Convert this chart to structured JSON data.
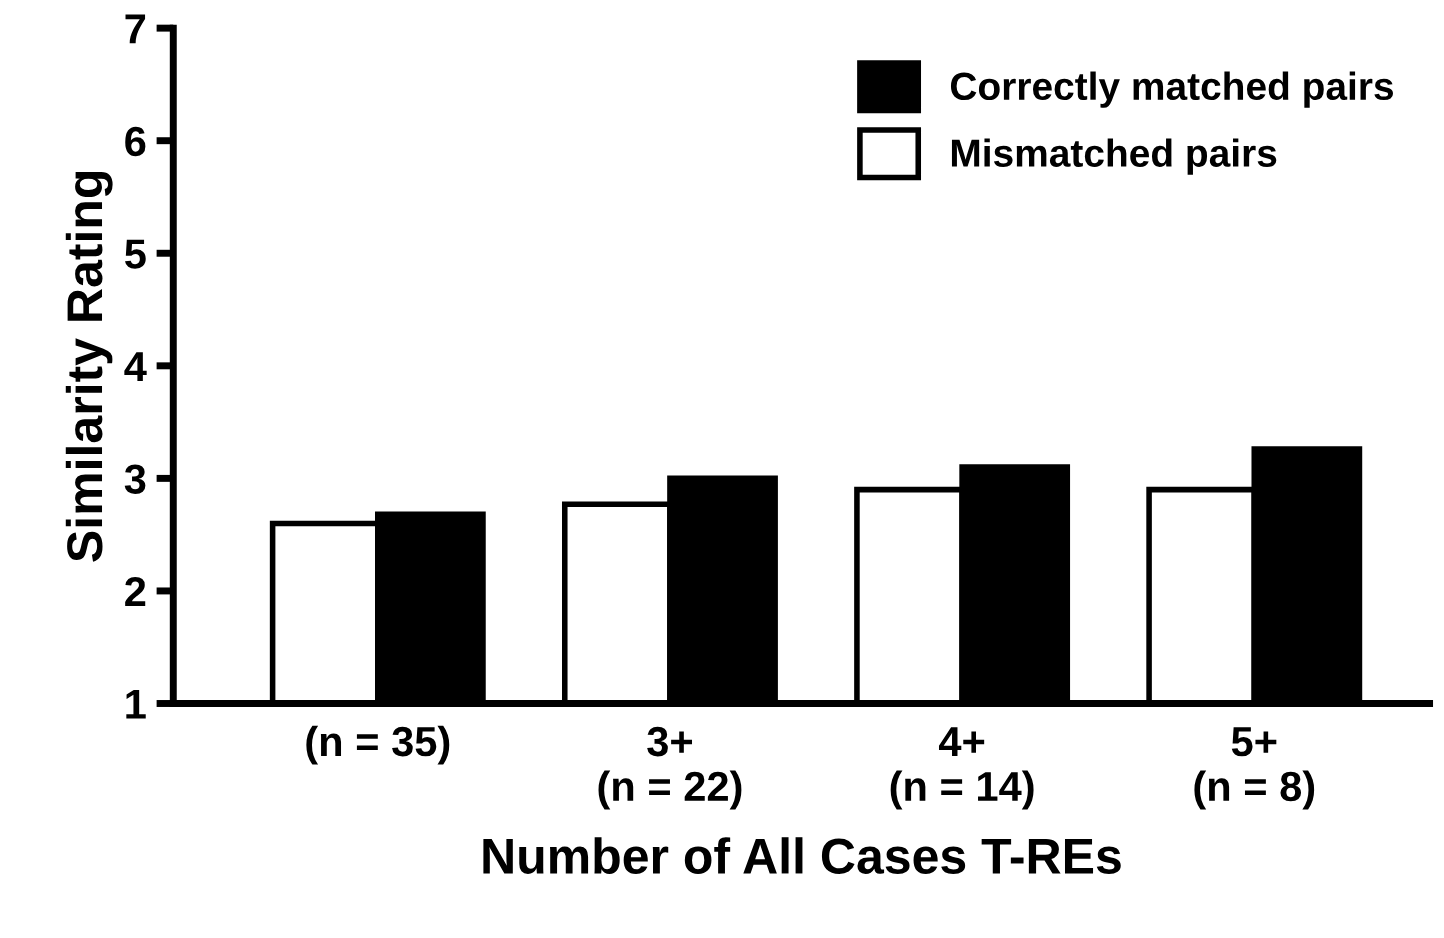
{
  "chart_data": {
    "type": "bar",
    "xlabel": "Number of All Cases T-REs",
    "ylabel": "Similarity Rating",
    "categories": [
      "(n = 35)",
      "3+\n(n = 22)",
      "4+\n(n = 14)",
      "5+\n(n = 8)"
    ],
    "series": [
      {
        "name": "Mismatched pairs",
        "color": "#ffffff",
        "values": [
          2.6,
          2.77,
          2.9,
          2.9
        ]
      },
      {
        "name": "Correctly matched pairs",
        "color": "#000000",
        "values": [
          2.68,
          3.0,
          3.1,
          3.26
        ]
      }
    ],
    "ylim": [
      1,
      7
    ],
    "yticks": [
      1,
      2,
      3,
      4,
      5,
      6,
      7
    ],
    "grid": false,
    "legend": "top right"
  }
}
